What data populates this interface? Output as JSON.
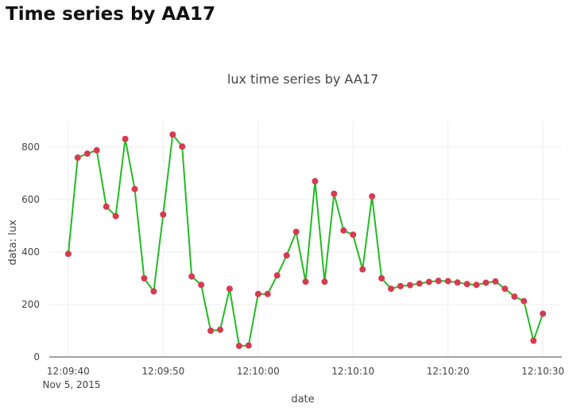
{
  "page": {
    "heading": "Time series by AA17"
  },
  "chart_data": {
    "type": "line",
    "title": "lux time series by AA17",
    "xlabel": "date",
    "ylabel": "data: lux",
    "x_unit": "seconds",
    "x_start_label": "12:09:40",
    "x_date_label": "Nov 5, 2015",
    "xticks": [
      {
        "t": 40,
        "label": "12:09:40"
      },
      {
        "t": 50,
        "label": "12:09:50"
      },
      {
        "t": 60,
        "label": "12:10:00"
      },
      {
        "t": 70,
        "label": "12:10:10"
      },
      {
        "t": 80,
        "label": "12:10:20"
      },
      {
        "t": 90,
        "label": "12:10:30"
      }
    ],
    "yticks": [
      0,
      200,
      400,
      600,
      800
    ],
    "ylim": [
      0,
      900
    ],
    "grid": true,
    "line_color": "#22bb22",
    "marker_color": "#d63b50",
    "x": [
      "12:09:40",
      "12:09:41",
      "12:09:42",
      "12:09:43",
      "12:09:44",
      "12:09:45",
      "12:09:46",
      "12:09:47",
      "12:09:48",
      "12:09:49",
      "12:09:50",
      "12:09:51",
      "12:09:52",
      "12:09:53",
      "12:09:54",
      "12:09:55",
      "12:09:56",
      "12:09:57",
      "12:09:58",
      "12:09:59",
      "12:10:00",
      "12:10:01",
      "12:10:02",
      "12:10:03",
      "12:10:04",
      "12:10:05",
      "12:10:06",
      "12:10:07",
      "12:10:08",
      "12:10:09",
      "12:10:10",
      "12:10:11",
      "12:10:12",
      "12:10:13",
      "12:10:14",
      "12:10:15",
      "12:10:16",
      "12:10:17",
      "12:10:18",
      "12:10:19",
      "12:10:20",
      "12:10:21",
      "12:10:22",
      "12:10:23",
      "12:10:24",
      "12:10:25",
      "12:10:26",
      "12:10:27",
      "12:10:28",
      "12:10:29",
      "12:10:30"
    ],
    "values": [
      393,
      760,
      775,
      788,
      573,
      537,
      831,
      640,
      300,
      250,
      543,
      848,
      802,
      307,
      275,
      100,
      104,
      260,
      42,
      44,
      240,
      240,
      311,
      387,
      477,
      287,
      670,
      287,
      622,
      482,
      466,
      334,
      612,
      300,
      260,
      270,
      274,
      280,
      286,
      290,
      289,
      284,
      278,
      275,
      283,
      288,
      260,
      230,
      213,
      62,
      165
    ]
  }
}
